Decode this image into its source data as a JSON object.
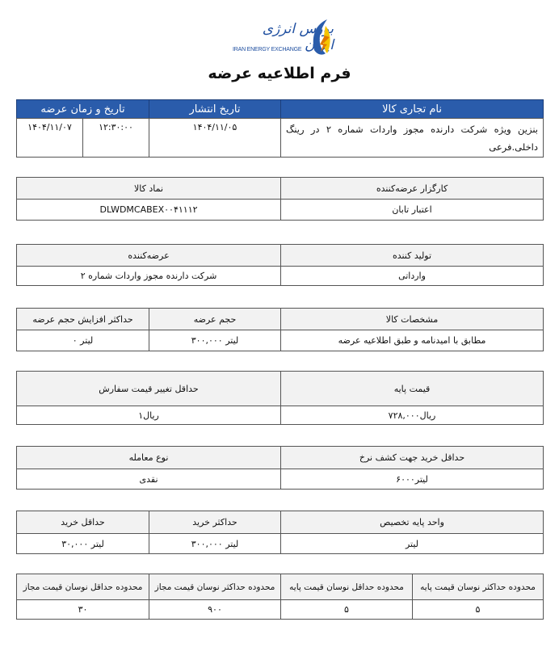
{
  "header": {
    "logo_fa": "بورس انرژی ایران",
    "logo_en": "IRAN ENERGY EXCHANGE",
    "title": "فرم اطلاعیه عرضه"
  },
  "colors": {
    "header_blue": "#2a5cab",
    "header_gray": "#f2f2f2",
    "logo_yellow": "#f5c400"
  },
  "tables": [
    {
      "headers": [
        "نام تجاری کالا",
        "تاریخ انتشار",
        "تاریخ و زمان عرضه"
      ],
      "values": [
        "بنزین ویژه شرکت دارنده مجوز واردات شماره ۲ در رینگ داخلی.فرعی",
        "۱۴۰۴/۱۱/۰۵",
        "۱۲:۳۰:۰۰",
        "۱۴۰۴/۱۱/۰۷"
      ]
    },
    {
      "headers": [
        "کارگزار عرضه‌کننده",
        "نماد کالا"
      ],
      "values": [
        "اعتبار تابان",
        "DLWDMCABEX۰۰۴۱۱۱۲"
      ]
    },
    {
      "headers": [
        "تولید کننده",
        "عرضه‌کننده"
      ],
      "values": [
        "وارداتی",
        "شرکت دارنده مجوز واردات شماره ۲"
      ]
    },
    {
      "headers": [
        "مشخصات کالا",
        "حجم عرضه",
        "حداکثر افزایش حجم عرضه"
      ],
      "values": [
        "مطابق با امیدنامه و طبق اطلاعیه عرضه",
        "لیتر ۳۰۰,۰۰۰",
        "لیتر ۰"
      ]
    },
    {
      "headers": [
        "قیمت پایه",
        "حداقل تغییر قیمت سفارش"
      ],
      "values": [
        "ریال۷۲۸,۰۰۰",
        "ریال۱"
      ]
    },
    {
      "headers": [
        "حداقل خرید جهت کشف نرخ",
        "نوع معامله"
      ],
      "values": [
        "لیتر۶۰۰۰",
        "نقدی"
      ]
    },
    {
      "headers": [
        "واحد پایه تخصیص",
        "حداکثر خرید",
        "حداقل خرید"
      ],
      "values": [
        "لیتر",
        "لیتر ۳۰۰,۰۰۰",
        "لیتر ۳۰,۰۰۰"
      ]
    },
    {
      "headers": [
        "محدوده حداکثر نوسان قیمت پایه",
        "محدوده حداقل نوسان قیمت پایه",
        "محدوده حداکثر نوسان قیمت مجاز",
        "محدوده حداقل نوسان قیمت مجاز"
      ],
      "values": [
        "۵",
        "۵",
        "۹۰۰",
        "۳۰"
      ]
    }
  ]
}
